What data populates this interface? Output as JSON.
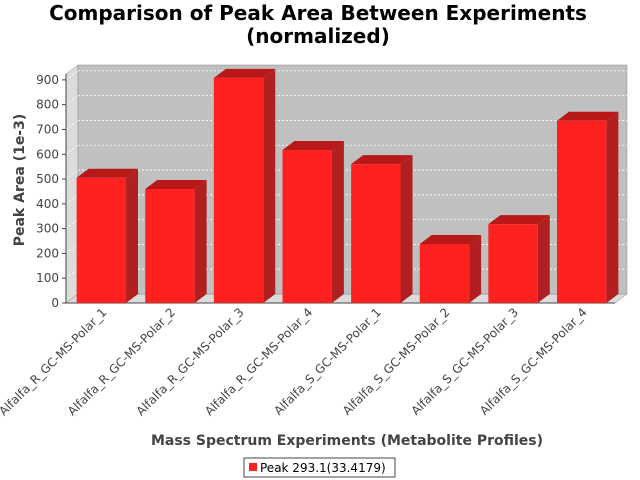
{
  "chart_data": {
    "type": "bar",
    "title": "Comparison of Peak Area Between Experiments",
    "subtitle": "(normalized)",
    "xlabel": "Mass Spectrum Experiments (Metabolite Profiles)",
    "ylabel": "Peak Area (1e-3)",
    "categories": [
      "Alfalfa_R_GC-MS-Polar_1",
      "Alfalfa_R_GC-MS-Polar_2",
      "Alfalfa_R_GC-MS-Polar_3",
      "Alfalfa_R_GC-MS-Polar_4",
      "Alfalfa_S_GC-MS-Polar_1",
      "Alfalfa_S_GC-MS-Polar_2",
      "Alfalfa_S_GC-MS-Polar_3",
      "Alfalfa_S_GC-MS-Polar_4"
    ],
    "series": [
      {
        "name": "Peak 293.1(33.4179)",
        "values": [
          505,
          460,
          908,
          617,
          560,
          238,
          318,
          735
        ],
        "color": "#ff2020"
      }
    ],
    "yticks": [
      0,
      100,
      200,
      300,
      400,
      500,
      600,
      700,
      800,
      900
    ],
    "ylim": [
      0,
      960
    ],
    "grid": true,
    "legend_position": "bottom",
    "colors": {
      "plot_background": "#c0c0c0",
      "wall": "#dcdcdc",
      "bar_front": "#ff2020",
      "bar_top": "#b81818",
      "bar_side": "#b02020"
    }
  }
}
